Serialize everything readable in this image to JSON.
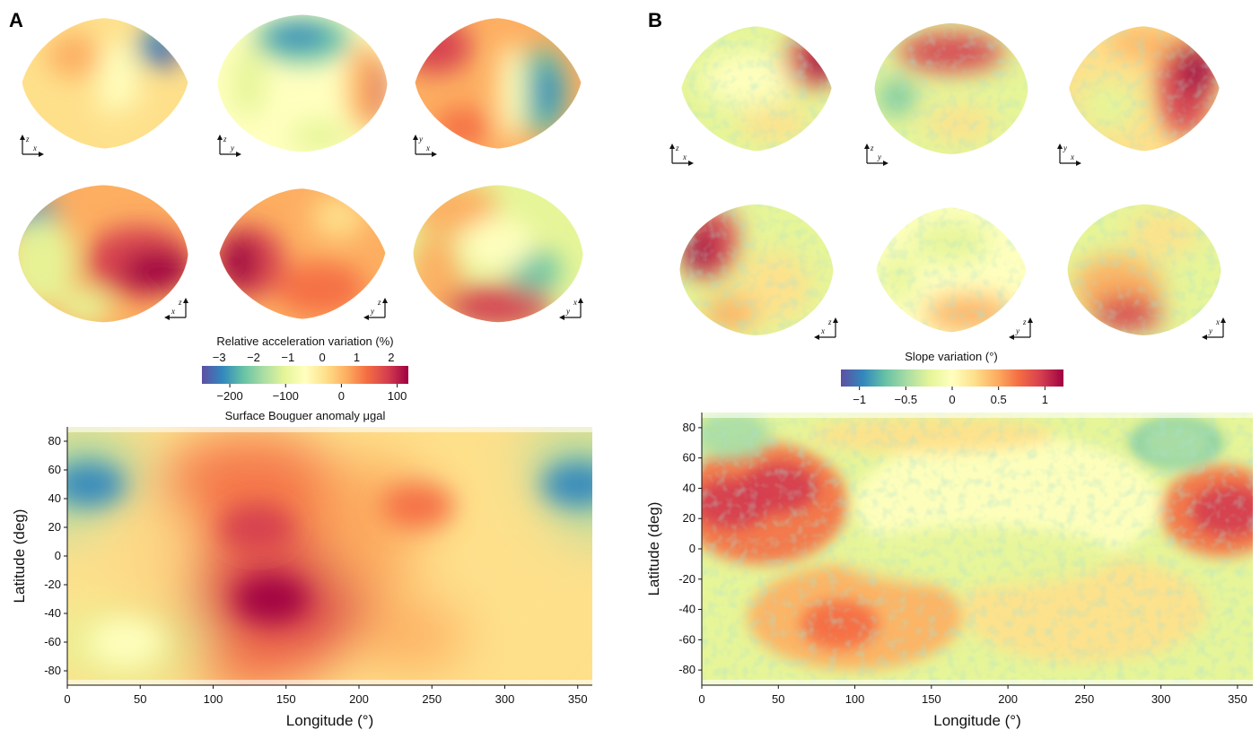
{
  "panels": {
    "a": {
      "label": "A",
      "colorbar": {
        "title": "Relative acceleration variation (%)",
        "top_ticks": [
          "−3",
          "−2",
          "−1",
          "0",
          "1",
          "2"
        ],
        "bottom_ticks": [
          "−200",
          "−100",
          "0",
          "100"
        ],
        "bottom_title": "Surface Bouguer anomaly μgal"
      }
    },
    "b": {
      "label": "B",
      "colorbar": {
        "title": "Slope variation (°)",
        "ticks": [
          "−1",
          "−0.5",
          "0",
          "0.5",
          "1"
        ]
      }
    }
  },
  "views": {
    "row1": [
      {
        "h": "x",
        "v": "z"
      },
      {
        "h": "y",
        "v": "z"
      },
      {
        "h": "x",
        "v": "y"
      }
    ],
    "row2": [
      {
        "h": "x",
        "v": "z"
      },
      {
        "h": "y",
        "v": "z"
      },
      {
        "h": "y",
        "v": "x"
      }
    ]
  },
  "colors": {
    "purple": "#5e4fa2",
    "blue": "#3288bd",
    "teal": "#66c2a5",
    "green": "#abdda4",
    "lightgreen": "#e6f598",
    "pale": "#ffffbf",
    "lightorange": "#fee08b",
    "orange": "#fdae61",
    "redorange": "#f46d43",
    "red": "#d53e4f",
    "crimson": "#9e0142"
  },
  "chart_data": [
    {
      "type": "heatmap",
      "title": "",
      "xlabel": "Longitude (°)",
      "ylabel": "Latitude (deg)",
      "xlim": [
        0,
        360
      ],
      "ylim": [
        -90,
        90
      ],
      "x_ticks": [
        "0",
        "50",
        "100",
        "150",
        "200",
        "250",
        "300",
        "350"
      ],
      "y_ticks": [
        "80",
        "60",
        "40",
        "20",
        "0",
        "-20",
        "-40",
        "-60",
        "-80"
      ],
      "colorbar_range_percent": [
        -3.5,
        2.5
      ],
      "colorbar_range_mugal": [
        -250,
        120
      ],
      "features": [
        {
          "lon": 15,
          "lat": 50,
          "value_percent": -3.0
        },
        {
          "lon": 350,
          "lat": 50,
          "value_percent": -3.0
        },
        {
          "lon": 140,
          "lat": -30,
          "value_percent": 2.3
        },
        {
          "lon": 130,
          "lat": 20,
          "value_percent": 1.9
        },
        {
          "lon": 240,
          "lat": 35,
          "value_percent": 1.5
        },
        {
          "lon": 40,
          "lat": -60,
          "value_percent": -0.6
        }
      ]
    },
    {
      "type": "heatmap",
      "title": "",
      "xlabel": "Longitude (°)",
      "ylabel": "Latitude (deg)",
      "xlim": [
        0,
        360
      ],
      "ylim": [
        -90,
        90
      ],
      "x_ticks": [
        "0",
        "50",
        "100",
        "150",
        "200",
        "250",
        "300",
        "350"
      ],
      "y_ticks": [
        "80",
        "60",
        "40",
        "20",
        "0",
        "-20",
        "-40",
        "-60",
        "-80"
      ],
      "colorbar_range_degrees": [
        -1.2,
        1.2
      ],
      "features": [
        {
          "lon": 20,
          "lat": 30,
          "value_degrees": 1.0
        },
        {
          "lon": 345,
          "lat": 25,
          "value_degrees": 1.0
        },
        {
          "lon": 50,
          "lat": 40,
          "value_degrees": 0.9
        },
        {
          "lon": 90,
          "lat": -50,
          "value_degrees": 0.6
        },
        {
          "lon": 310,
          "lat": 70,
          "value_degrees": -0.5
        },
        {
          "lon": 20,
          "lat": 75,
          "value_degrees": -0.4
        }
      ]
    }
  ]
}
